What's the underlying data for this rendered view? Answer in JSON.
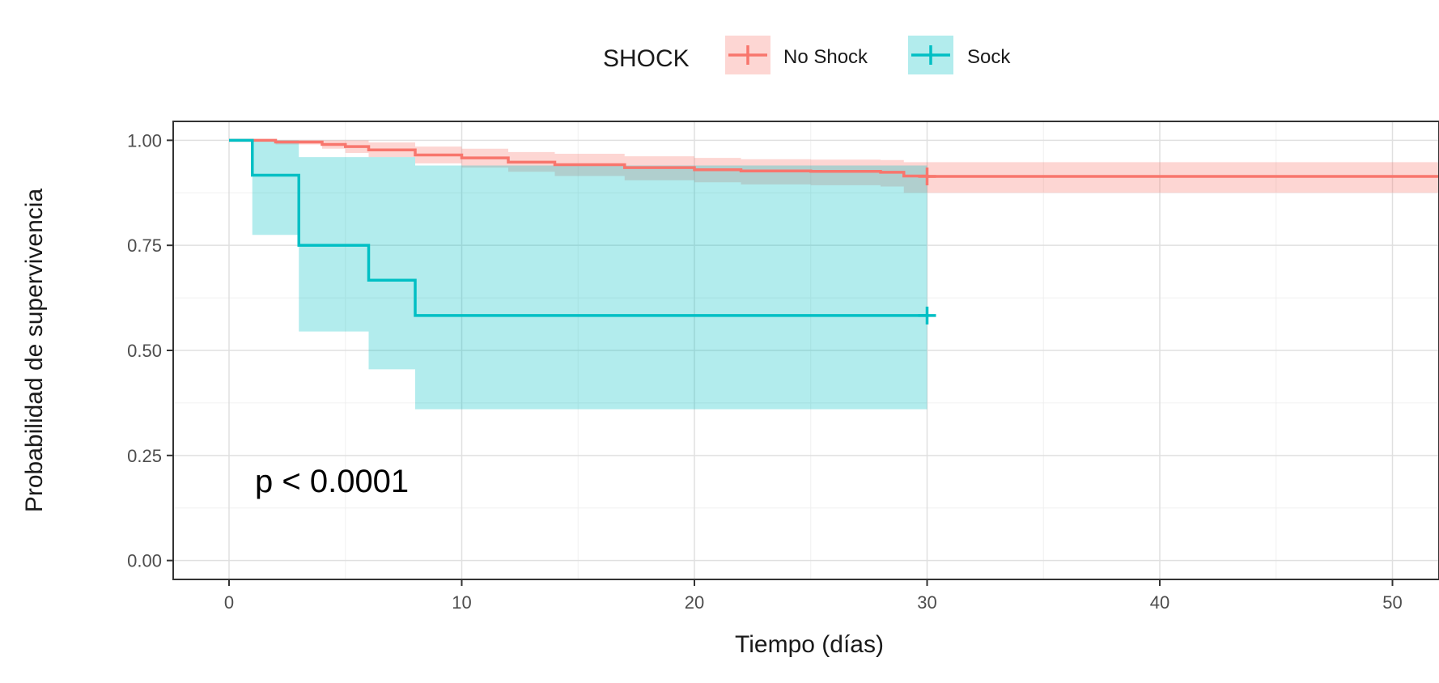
{
  "chart_data": {
    "type": "line",
    "subtype": "kaplan-meier survival curve with confidence bands",
    "xlabel": "Tiempo (días)",
    "ylabel": "Probabilidad de supervivencia",
    "xlim": [
      -2.4,
      52
    ],
    "ylim": [
      -0.045,
      1.045
    ],
    "x_ticks": [
      0,
      10,
      20,
      30,
      40,
      50
    ],
    "y_ticks": [
      0.0,
      0.25,
      0.5,
      0.75,
      1.0
    ],
    "x_tick_labels": [
      "0",
      "10",
      "20",
      "30",
      "40",
      "50"
    ],
    "y_tick_labels": [
      "0.00",
      "0.25",
      "0.50",
      "0.75",
      "1.00"
    ],
    "grid": true,
    "legend": {
      "title": "SHOCK",
      "placement": "top",
      "entries": [
        "No Shock",
        "Sock"
      ]
    },
    "annotation": "p < 0.0001",
    "series": [
      {
        "name": "No Shock",
        "color": "#F8766D",
        "steps": [
          [
            0,
            1.0
          ],
          [
            1,
            1.0
          ],
          [
            2,
            0.996
          ],
          [
            4,
            0.99
          ],
          [
            5,
            0.985
          ],
          [
            6,
            0.977
          ],
          [
            8,
            0.965
          ],
          [
            10,
            0.958
          ],
          [
            12,
            0.948
          ],
          [
            14,
            0.942
          ],
          [
            17,
            0.935
          ],
          [
            20,
            0.93
          ],
          [
            22,
            0.927
          ],
          [
            25,
            0.926
          ],
          [
            28,
            0.924
          ],
          [
            29,
            0.915
          ],
          [
            30,
            0.914
          ],
          [
            52,
            0.914
          ]
        ],
        "lower": [
          [
            0,
            1.0
          ],
          [
            1,
            1.0
          ],
          [
            2,
            0.99
          ],
          [
            4,
            0.98
          ],
          [
            5,
            0.97
          ],
          [
            6,
            0.96
          ],
          [
            8,
            0.945
          ],
          [
            10,
            0.935
          ],
          [
            12,
            0.925
          ],
          [
            14,
            0.915
          ],
          [
            17,
            0.905
          ],
          [
            20,
            0.9
          ],
          [
            22,
            0.895
          ],
          [
            25,
            0.893
          ],
          [
            28,
            0.89
          ],
          [
            29,
            0.875
          ],
          [
            30,
            0.875
          ],
          [
            52,
            0.875
          ]
        ],
        "upper": [
          [
            0,
            1.0
          ],
          [
            1,
            1.0
          ],
          [
            2,
            1.0
          ],
          [
            4,
            1.0
          ],
          [
            5,
            1.0
          ],
          [
            6,
            0.995
          ],
          [
            8,
            0.985
          ],
          [
            10,
            0.98
          ],
          [
            12,
            0.972
          ],
          [
            14,
            0.968
          ],
          [
            17,
            0.962
          ],
          [
            20,
            0.958
          ],
          [
            22,
            0.955
          ],
          [
            25,
            0.954
          ],
          [
            28,
            0.953
          ],
          [
            29,
            0.948
          ],
          [
            30,
            0.948
          ],
          [
            52,
            0.948
          ]
        ],
        "censor": [
          [
            30,
            0.914
          ]
        ]
      },
      {
        "name": "Sock",
        "color": "#00BFC4",
        "steps": [
          [
            0,
            1.0
          ],
          [
            1,
            0.917
          ],
          [
            3,
            0.75
          ],
          [
            6,
            0.667
          ],
          [
            8,
            0.583
          ],
          [
            30,
            0.583
          ]
        ],
        "lower": [
          [
            0,
            1.0
          ],
          [
            1,
            0.775
          ],
          [
            3,
            0.545
          ],
          [
            6,
            0.455
          ],
          [
            8,
            0.36
          ],
          [
            30,
            0.36
          ]
        ],
        "upper": [
          [
            0,
            1.0
          ],
          [
            1,
            1.0
          ],
          [
            3,
            0.96
          ],
          [
            6,
            0.96
          ],
          [
            8,
            0.94
          ],
          [
            30,
            0.94
          ]
        ],
        "censor": [
          [
            30,
            0.583
          ]
        ]
      }
    ]
  }
}
